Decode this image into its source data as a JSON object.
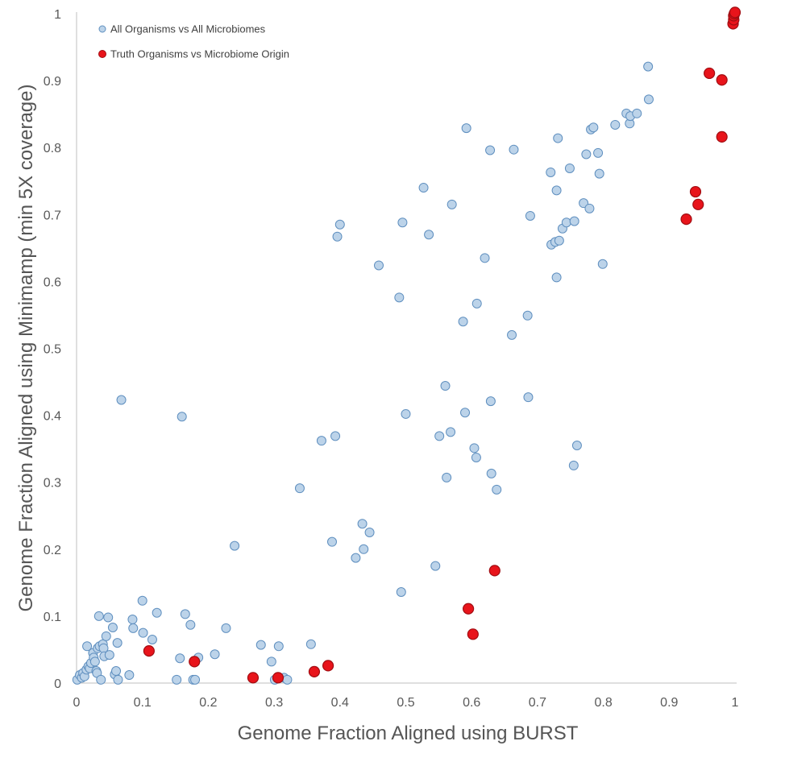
{
  "chart_data": {
    "type": "scatter",
    "title": "",
    "xlabel": "Genome Fraction Aligned using BURST",
    "ylabel": "Genome Fraction Aligned using Minimamp (min 5X coverage)",
    "xlim": [
      0,
      1
    ],
    "ylim": [
      0,
      1
    ],
    "grid": false,
    "legend_position": "top-left",
    "x_ticks": [
      "0",
      "0.1",
      "0.2",
      "0.3",
      "0.4",
      "0.5",
      "0.6",
      "0.7",
      "0.8",
      "0.9",
      "1"
    ],
    "y_ticks": [
      "0",
      "0.1",
      "0.2",
      "0.3",
      "0.4",
      "0.5",
      "0.6",
      "0.7",
      "0.8",
      "0.9",
      "1"
    ],
    "series": [
      {
        "name": "All Organisms vs All Microbiomes",
        "color": "#bcd3e9",
        "stroke": "#5f8fbf",
        "points": [
          [
            0.001,
            0.005
          ],
          [
            0.005,
            0.012
          ],
          [
            0.008,
            0.008
          ],
          [
            0.01,
            0.015
          ],
          [
            0.012,
            0.01
          ],
          [
            0.015,
            0.02
          ],
          [
            0.016,
            0.055
          ],
          [
            0.018,
            0.025
          ],
          [
            0.02,
            0.022
          ],
          [
            0.022,
            0.03
          ],
          [
            0.025,
            0.045
          ],
          [
            0.026,
            0.038
          ],
          [
            0.028,
            0.032
          ],
          [
            0.03,
            0.018
          ],
          [
            0.031,
            0.015
          ],
          [
            0.032,
            0.052
          ],
          [
            0.034,
            0.1
          ],
          [
            0.035,
            0.055
          ],
          [
            0.037,
            0.005
          ],
          [
            0.04,
            0.058
          ],
          [
            0.041,
            0.052
          ],
          [
            0.042,
            0.04
          ],
          [
            0.045,
            0.07
          ],
          [
            0.048,
            0.098
          ],
          [
            0.05,
            0.042
          ],
          [
            0.055,
            0.083
          ],
          [
            0.058,
            0.013
          ],
          [
            0.06,
            0.018
          ],
          [
            0.062,
            0.06
          ],
          [
            0.063,
            0.005
          ],
          [
            0.068,
            0.423
          ],
          [
            0.08,
            0.012
          ],
          [
            0.085,
            0.095
          ],
          [
            0.086,
            0.082
          ],
          [
            0.1,
            0.123
          ],
          [
            0.101,
            0.075
          ],
          [
            0.115,
            0.065
          ],
          [
            0.122,
            0.105
          ],
          [
            0.152,
            0.005
          ],
          [
            0.157,
            0.037
          ],
          [
            0.16,
            0.398
          ],
          [
            0.165,
            0.103
          ],
          [
            0.173,
            0.087
          ],
          [
            0.177,
            0.005
          ],
          [
            0.18,
            0.005
          ],
          [
            0.185,
            0.038
          ],
          [
            0.21,
            0.043
          ],
          [
            0.227,
            0.082
          ],
          [
            0.24,
            0.205
          ],
          [
            0.28,
            0.057
          ],
          [
            0.296,
            0.032
          ],
          [
            0.301,
            0.005
          ],
          [
            0.307,
            0.055
          ],
          [
            0.315,
            0.008
          ],
          [
            0.32,
            0.005
          ],
          [
            0.339,
            0.291
          ],
          [
            0.356,
            0.058
          ],
          [
            0.372,
            0.362
          ],
          [
            0.388,
            0.211
          ],
          [
            0.393,
            0.369
          ],
          [
            0.396,
            0.667
          ],
          [
            0.4,
            0.685
          ],
          [
            0.424,
            0.187
          ],
          [
            0.434,
            0.238
          ],
          [
            0.436,
            0.2
          ],
          [
            0.445,
            0.225
          ],
          [
            0.459,
            0.624
          ],
          [
            0.49,
            0.576
          ],
          [
            0.493,
            0.136
          ],
          [
            0.495,
            0.688
          ],
          [
            0.5,
            0.402
          ],
          [
            0.527,
            0.74
          ],
          [
            0.535,
            0.67
          ],
          [
            0.545,
            0.175
          ],
          [
            0.551,
            0.369
          ],
          [
            0.56,
            0.444
          ],
          [
            0.562,
            0.307
          ],
          [
            0.568,
            0.375
          ],
          [
            0.57,
            0.715
          ],
          [
            0.587,
            0.54
          ],
          [
            0.59,
            0.404
          ],
          [
            0.592,
            0.829
          ],
          [
            0.604,
            0.351
          ],
          [
            0.607,
            0.337
          ],
          [
            0.608,
            0.567
          ],
          [
            0.62,
            0.635
          ],
          [
            0.628,
            0.796
          ],
          [
            0.629,
            0.421
          ],
          [
            0.63,
            0.313
          ],
          [
            0.638,
            0.289
          ],
          [
            0.661,
            0.52
          ],
          [
            0.664,
            0.797
          ],
          [
            0.685,
            0.549
          ],
          [
            0.686,
            0.427
          ],
          [
            0.689,
            0.698
          ],
          [
            0.72,
            0.763
          ],
          [
            0.721,
            0.655
          ],
          [
            0.727,
            0.659
          ],
          [
            0.729,
            0.606
          ],
          [
            0.729,
            0.736
          ],
          [
            0.731,
            0.814
          ],
          [
            0.733,
            0.661
          ],
          [
            0.738,
            0.679
          ],
          [
            0.744,
            0.688
          ],
          [
            0.749,
            0.769
          ],
          [
            0.755,
            0.325
          ],
          [
            0.756,
            0.69
          ],
          [
            0.76,
            0.355
          ],
          [
            0.77,
            0.717
          ],
          [
            0.774,
            0.79
          ],
          [
            0.779,
            0.709
          ],
          [
            0.781,
            0.827
          ],
          [
            0.785,
            0.83
          ],
          [
            0.792,
            0.792
          ],
          [
            0.794,
            0.761
          ],
          [
            0.799,
            0.626
          ],
          [
            0.818,
            0.834
          ],
          [
            0.835,
            0.851
          ],
          [
            0.84,
            0.836
          ],
          [
            0.841,
            0.847
          ],
          [
            0.851,
            0.851
          ],
          [
            0.868,
            0.921
          ],
          [
            0.869,
            0.872
          ]
        ]
      },
      {
        "name": "Truth Organisms vs Microbiome Origin",
        "color": "#e8141b",
        "stroke": "#a10d12",
        "points": [
          [
            0.11,
            0.048
          ],
          [
            0.179,
            0.032
          ],
          [
            0.268,
            0.008
          ],
          [
            0.306,
            0.008
          ],
          [
            0.361,
            0.017
          ],
          [
            0.382,
            0.026
          ],
          [
            0.595,
            0.111
          ],
          [
            0.602,
            0.073
          ],
          [
            0.635,
            0.168
          ],
          [
            0.926,
            0.693
          ],
          [
            0.94,
            0.734
          ],
          [
            0.944,
            0.715
          ],
          [
            0.961,
            0.911
          ],
          [
            0.98,
            0.816
          ],
          [
            0.98,
            0.901
          ],
          [
            0.997,
            0.985
          ],
          [
            0.998,
            0.991
          ],
          [
            0.998,
            0.997
          ],
          [
            0.999,
            1.0
          ],
          [
            1.0,
            1.002
          ]
        ]
      }
    ]
  }
}
